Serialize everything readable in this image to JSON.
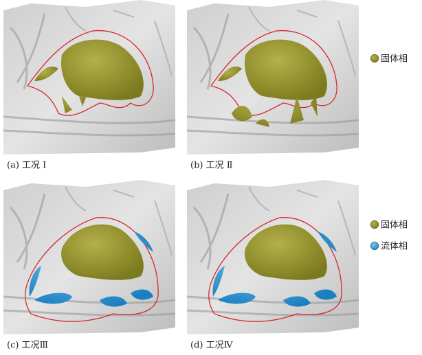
{
  "panels": [
    {
      "caption": "(a) 工况 Ⅰ"
    },
    {
      "caption": "(b) 工况 Ⅱ"
    },
    {
      "caption": "(c) 工况Ⅲ"
    },
    {
      "caption": "(d) 工况Ⅳ"
    }
  ],
  "legend_top": {
    "items": [
      "固体相"
    ]
  },
  "legend_bottom": {
    "items": [
      "固体相",
      "流体相"
    ]
  }
}
